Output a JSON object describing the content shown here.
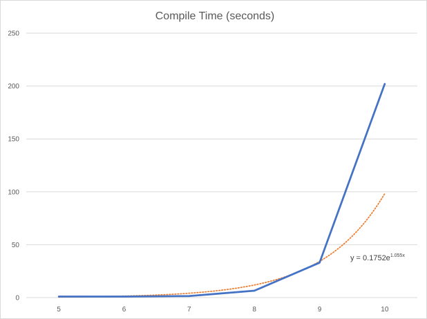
{
  "chart_data": {
    "type": "line",
    "title": "Compile Time (seconds)",
    "xlabel": "",
    "ylabel": "",
    "categories": [
      "5",
      "6",
      "7",
      "8",
      "9",
      "10"
    ],
    "ylim": [
      0,
      250
    ],
    "yticks": [
      0,
      50,
      100,
      150,
      200,
      250
    ],
    "grid": true,
    "legend": "none",
    "series": [
      {
        "values": [
          1,
          1,
          1.5,
          6.5,
          33,
          202
        ],
        "color": "#4472c4"
      }
    ],
    "trendline": {
      "kind": "exponential",
      "a": 0.1752,
      "b": 1.055,
      "color": "#ed7d31",
      "equation": {
        "prefix": "y = 0.1752e",
        "exponent": "1.055x"
      }
    }
  }
}
